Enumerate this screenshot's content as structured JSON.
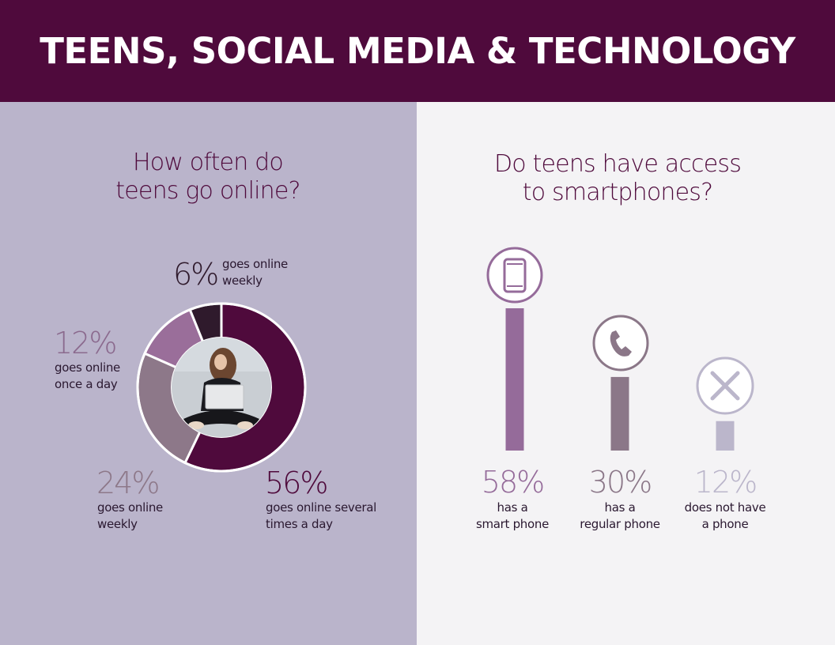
{
  "header": {
    "title": "TEENS, SOCIAL MEDIA & TECHNOLOGY"
  },
  "online": {
    "title_line1": "How often do",
    "title_line2": "teens go online?",
    "items": [
      {
        "pct": "56%",
        "line1": "goes online several",
        "line2": "times a day"
      },
      {
        "pct": "24%",
        "line1": "goes online",
        "line2": "weekly"
      },
      {
        "pct": "12%",
        "line1": "goes online",
        "line2": "once a day"
      },
      {
        "pct": "6%",
        "line1": "goes online",
        "line2": "weekly"
      }
    ]
  },
  "phones": {
    "title_line1": "Do teens have access",
    "title_line2": "to smartphones?",
    "items": [
      {
        "pct": "58%",
        "line1": "has a",
        "line2": "smart phone",
        "icon": "smartphone-icon"
      },
      {
        "pct": "30%",
        "line1": "has a",
        "line2": "regular phone",
        "icon": "phone-handset-icon"
      },
      {
        "pct": "12%",
        "line1": "does not have",
        "line2": "a phone",
        "icon": "x-icon"
      }
    ]
  },
  "chart_data": [
    {
      "type": "pie",
      "title": "How often do teens go online?",
      "categories": [
        "goes online several times a day",
        "goes online weekly",
        "goes online once a day",
        "goes online weekly"
      ],
      "values": [
        56,
        24,
        12,
        6
      ],
      "colors": [
        "#4f0a3c",
        "#8d7889",
        "#9a6e9a",
        "#2f1a2c"
      ],
      "donut": true
    },
    {
      "type": "bar",
      "title": "Do teens have access to smartphones?",
      "categories": [
        "has a smart phone",
        "has a regular phone",
        "does not have a phone"
      ],
      "values": [
        58,
        30,
        12
      ],
      "colors": [
        "#956b9a",
        "#8b7788",
        "#bbb6cb"
      ]
    }
  ]
}
